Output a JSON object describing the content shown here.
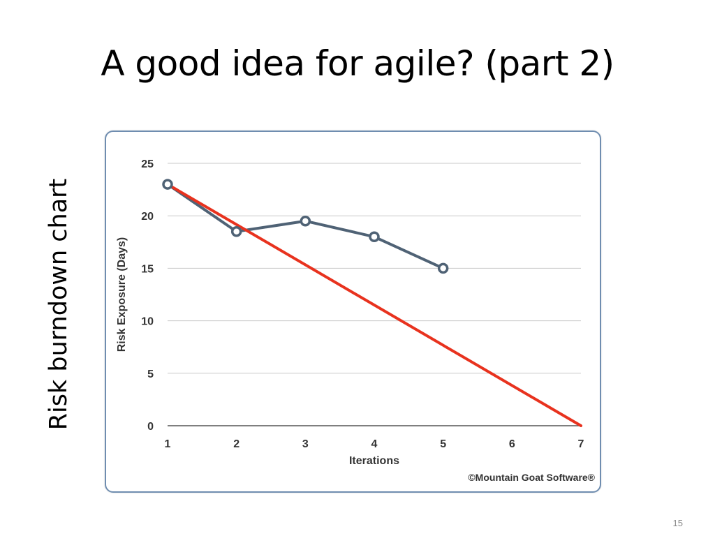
{
  "slide": {
    "title": "A good idea for agile? (part 2)",
    "side_label": "Risk burndown chart",
    "page_number": "15"
  },
  "chart_data": {
    "type": "line",
    "xlabel": "Iterations",
    "ylabel": "Risk Exposure (Days)",
    "categories": [
      1,
      2,
      3,
      4,
      5,
      6,
      7
    ],
    "xlim": [
      1,
      7
    ],
    "ylim": [
      0,
      25
    ],
    "yticks": [
      0,
      5,
      10,
      15,
      20,
      25
    ],
    "grid": true,
    "series": [
      {
        "color": "#4f6275",
        "markers": true,
        "x": [
          1,
          2,
          3,
          4,
          5
        ],
        "y": [
          23,
          18.5,
          19.5,
          18,
          15
        ]
      },
      {
        "color": "#e8321e",
        "markers": false,
        "x": [
          1,
          7
        ],
        "y": [
          23,
          0
        ]
      }
    ],
    "annotation": "©Mountain Goat Software®"
  }
}
